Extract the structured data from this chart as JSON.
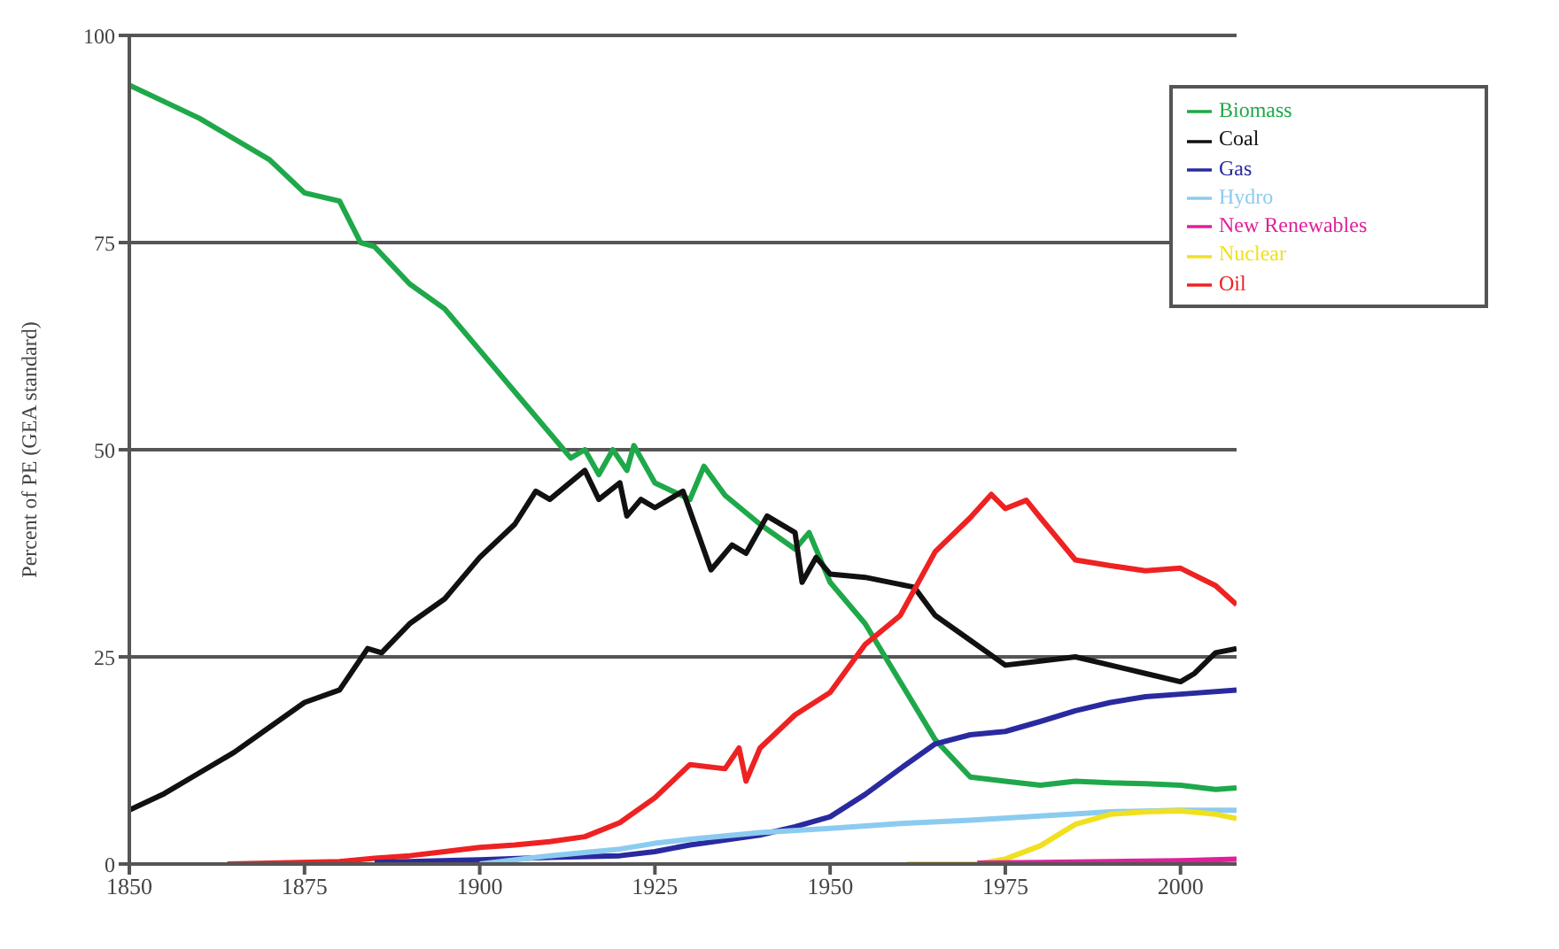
{
  "chart_data": {
    "type": "line",
    "ylabel": "Percent of PE (GEA standard)",
    "xlim": [
      1850,
      2008
    ],
    "xticks": [
      1850,
      1875,
      1900,
      1925,
      1950,
      1975,
      2000
    ],
    "ylim": [
      0,
      100
    ],
    "yticks": [
      0,
      25,
      50,
      75,
      100
    ],
    "grid": "y",
    "legend": "top right",
    "marker": "none",
    "line_style": "solid",
    "series": [
      {
        "name": "Biomass",
        "color": "#1fa84a",
        "x": [
          1850,
          1855,
          1860,
          1865,
          1870,
          1875,
          1880,
          1883,
          1885,
          1890,
          1895,
          1900,
          1905,
          1910,
          1913,
          1915,
          1917,
          1919,
          1921,
          1922,
          1925,
          1930,
          1932,
          1935,
          1940,
          1945,
          1947,
          1950,
          1955,
          1960,
          1965,
          1970,
          1975,
          1980,
          1985,
          1990,
          1995,
          2000,
          2005,
          2008
        ],
        "values": [
          94,
          92,
          90,
          87.5,
          85,
          81,
          80,
          75,
          74.5,
          70,
          67,
          62,
          57,
          52,
          49,
          50,
          47,
          50,
          47.5,
          50.5,
          46,
          44,
          48,
          44.5,
          41,
          38,
          40,
          34,
          29,
          22,
          15,
          10.5,
          10,
          9.5,
          10,
          9.8,
          9.7,
          9.5,
          9,
          9.2
        ]
      },
      {
        "name": "Coal",
        "color": "#111111",
        "x": [
          1850,
          1855,
          1860,
          1865,
          1870,
          1875,
          1880,
          1884,
          1886,
          1890,
          1895,
          1900,
          1905,
          1908,
          1910,
          1915,
          1917,
          1920,
          1921,
          1923,
          1925,
          1929,
          1933,
          1936,
          1938,
          1941,
          1945,
          1946,
          1948,
          1950,
          1955,
          1962,
          1965,
          1970,
          1975,
          1980,
          1985,
          1990,
          1995,
          2000,
          2002,
          2005,
          2008
        ],
        "values": [
          6.5,
          8.5,
          11,
          13.5,
          16.5,
          19.5,
          21,
          26,
          25.5,
          29,
          32,
          37,
          41,
          45,
          44,
          47.5,
          44,
          46,
          42,
          44,
          43,
          45,
          35.5,
          38.5,
          37.5,
          42,
          40,
          34,
          37,
          35,
          34.6,
          33.4,
          30,
          27,
          24,
          24.5,
          25,
          24,
          23,
          22,
          23,
          25.5,
          26
        ]
      },
      {
        "name": "Oil",
        "color": "#ee2222",
        "x": [
          1864,
          1870,
          1880,
          1885,
          1890,
          1895,
          1900,
          1905,
          1910,
          1915,
          1920,
          1925,
          1930,
          1935,
          1937,
          1938,
          1940,
          1945,
          1950,
          1955,
          1960,
          1965,
          1970,
          1973,
          1975,
          1978,
          1980,
          1985,
          1990,
          1995,
          2000,
          2005,
          2008
        ],
        "values": [
          0,
          0.1,
          0.3,
          0.7,
          1,
          1.5,
          2,
          2.3,
          2.7,
          3.3,
          5,
          8,
          12,
          11.5,
          14,
          10,
          14,
          18,
          20.7,
          26.5,
          30,
          37.7,
          41.8,
          44.6,
          42.9,
          43.9,
          41.8,
          36.7,
          36,
          35.4,
          35.7,
          33.6,
          31.3
        ]
      },
      {
        "name": "Gas",
        "color": "#2a2aa0",
        "x": [
          1885,
          1900,
          1910,
          1920,
          1925,
          1930,
          1940,
          1945,
          1950,
          1955,
          1960,
          1965,
          1970,
          1975,
          1980,
          1985,
          1990,
          1995,
          2000,
          2008
        ],
        "values": [
          0.2,
          0.5,
          0.8,
          1,
          1.5,
          2.3,
          3.5,
          4.5,
          5.7,
          8.4,
          11.5,
          14.5,
          15.6,
          16,
          17.2,
          18.5,
          19.5,
          20.2,
          20.5,
          21
        ]
      },
      {
        "name": "Hydro",
        "color": "#8ccbf0",
        "x": [
          1900,
          1910,
          1920,
          1925,
          1930,
          1940,
          1950,
          1960,
          1970,
          1980,
          1990,
          2000,
          2008
        ],
        "values": [
          0,
          1,
          1.8,
          2.5,
          3,
          3.8,
          4.3,
          4.9,
          5.3,
          5.8,
          6.3,
          6.5,
          6.5
        ]
      },
      {
        "name": "Nuclear",
        "color": "#f0e020",
        "x": [
          1961,
          1971,
          1975,
          1980,
          1985,
          1990,
          1995,
          2000,
          2005,
          2008
        ],
        "values": [
          0,
          0,
          0.6,
          2.2,
          4.8,
          6,
          6.3,
          6.4,
          6,
          5.5
        ]
      },
      {
        "name": "New Renewables",
        "color": "#e0209a",
        "x": [
          1971,
          1980,
          1990,
          2000,
          2008
        ],
        "values": [
          0.1,
          0.2,
          0.3,
          0.4,
          0.6
        ]
      }
    ]
  }
}
